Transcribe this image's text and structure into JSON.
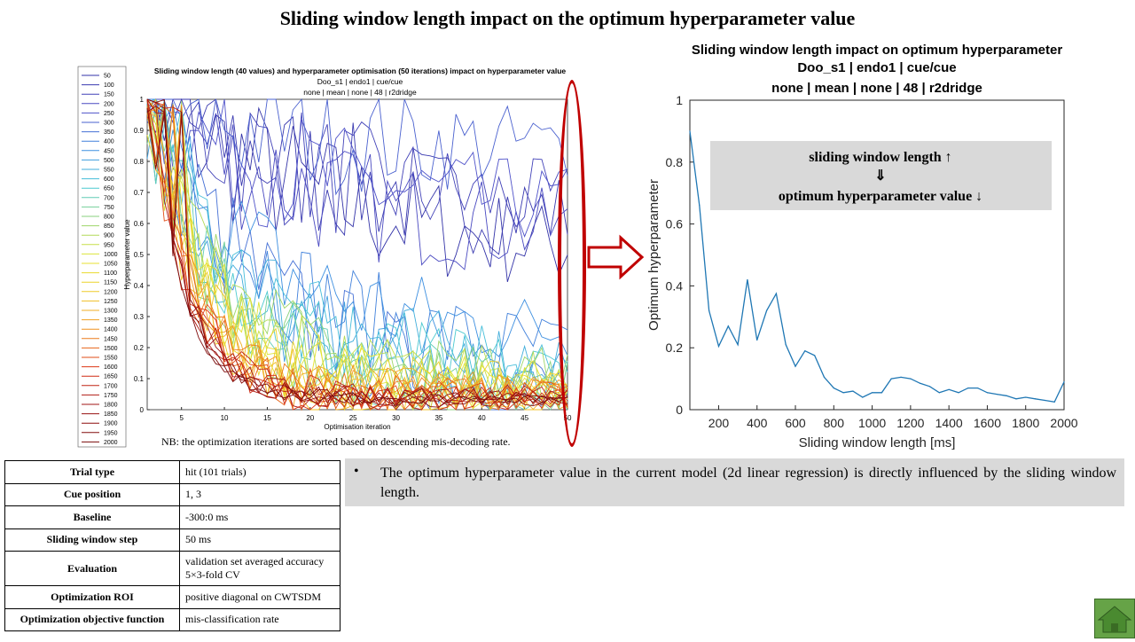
{
  "main_title": "Sliding window length impact on the optimum hyperparameter value",
  "note": "NB: the optimization iterations are sorted based on descending mis-decoding rate.",
  "annotation_box": {
    "line1": "sliding window length ↑",
    "line2": "⇓",
    "line3": "optimum hyperparameter value ↓"
  },
  "table": [
    {
      "key": "Trial type",
      "value": "hit (101 trials)"
    },
    {
      "key": "Cue position",
      "value": "1, 3"
    },
    {
      "key": "Baseline",
      "value": "-300:0 ms"
    },
    {
      "key": "Sliding window step",
      "value": "50 ms"
    },
    {
      "key": "Evaluation",
      "value": "validation set averaged accuracy 5×3-fold CV"
    },
    {
      "key": "Optimization ROI",
      "value": "positive diagonal on CWTSDM"
    },
    {
      "key": "Optimization objective function",
      "value": "mis-classification rate"
    }
  ],
  "bullet": {
    "symbol": "•",
    "text": "The optimum hyperparameter value in the current model (2d linear regression) is directly influenced by the sliding window length."
  },
  "icons": {
    "arrow": "right-arrow-icon",
    "home": "home-icon"
  },
  "colors": {
    "highlight": "#c00000",
    "line_blue": "#1f77b4",
    "annotation_bg": "#d9d9d9",
    "home_green": "#66a347"
  },
  "chart_data": [
    {
      "type": "line",
      "title": "Sliding window length (40 values) and hyperparameter optimisation (50 iterations) impact on hyperparameter value",
      "subtitle_1": "Doo_s1 | endo1 | cue/cue",
      "subtitle_2": "none | mean | none | 48 | r2dridge",
      "xlabel": "Optimisation iteration",
      "ylabel": "Hyperparameter value",
      "xlim": [
        1,
        50
      ],
      "ylim": [
        0,
        1
      ],
      "xticks": [
        5,
        10,
        15,
        20,
        25,
        30,
        35,
        40,
        45,
        50
      ],
      "yticks": [
        0,
        0.1,
        0.2,
        0.3,
        0.4,
        0.5,
        0.6,
        0.7,
        0.8,
        0.9,
        1
      ],
      "legend_position": "left",
      "legend_entries": [
        "50",
        "100",
        "150",
        "200",
        "250",
        "300",
        "350",
        "400",
        "450",
        "500",
        "550",
        "600",
        "650",
        "700",
        "750",
        "800",
        "850",
        "900",
        "950",
        "1000",
        "1050",
        "1100",
        "1150",
        "1200",
        "1250",
        "1300",
        "1350",
        "1400",
        "1450",
        "1500",
        "1550",
        "1600",
        "1650",
        "1700",
        "1750",
        "1800",
        "1850",
        "1900",
        "1950",
        "2000"
      ],
      "series_count": 40,
      "series_iterations": 50,
      "colormap": [
        "#3333a8",
        "#5050c8",
        "#3c8ce0",
        "#46c8d8",
        "#96d46e",
        "#e6e632",
        "#f0c828",
        "#f08c1e",
        "#dc3214",
        "#a01414",
        "#780a0a"
      ]
    },
    {
      "type": "line",
      "title": "Sliding window length impact on optimum hyperparameter",
      "subtitle_1": "Doo_s1 | endo1 | cue/cue",
      "subtitle_2": "none | mean | none | 48 | r2dridge",
      "xlabel": "Sliding window length [ms]",
      "ylabel": "Optimum hyperparameter",
      "xlim": [
        50,
        2000
      ],
      "ylim": [
        0,
        1
      ],
      "xticks": [
        200,
        400,
        600,
        800,
        1000,
        1200,
        1400,
        1600,
        1800,
        2000
      ],
      "yticks": [
        0,
        0.2,
        0.4,
        0.6,
        0.8,
        1
      ],
      "x": [
        50,
        100,
        150,
        200,
        250,
        300,
        350,
        400,
        450,
        500,
        550,
        600,
        650,
        700,
        750,
        800,
        850,
        900,
        950,
        1000,
        1050,
        1100,
        1150,
        1200,
        1250,
        1300,
        1350,
        1400,
        1450,
        1500,
        1550,
        1600,
        1650,
        1700,
        1750,
        1800,
        1850,
        1900,
        1950,
        2000
      ],
      "y": [
        0.9,
        0.66,
        0.32,
        0.205,
        0.27,
        0.21,
        0.42,
        0.225,
        0.32,
        0.375,
        0.21,
        0.14,
        0.19,
        0.175,
        0.105,
        0.07,
        0.055,
        0.06,
        0.04,
        0.055,
        0.055,
        0.1,
        0.105,
        0.1,
        0.085,
        0.075,
        0.055,
        0.065,
        0.055,
        0.07,
        0.07,
        0.055,
        0.05,
        0.045,
        0.035,
        0.04,
        0.035,
        0.03,
        0.025,
        0.09
      ]
    }
  ]
}
